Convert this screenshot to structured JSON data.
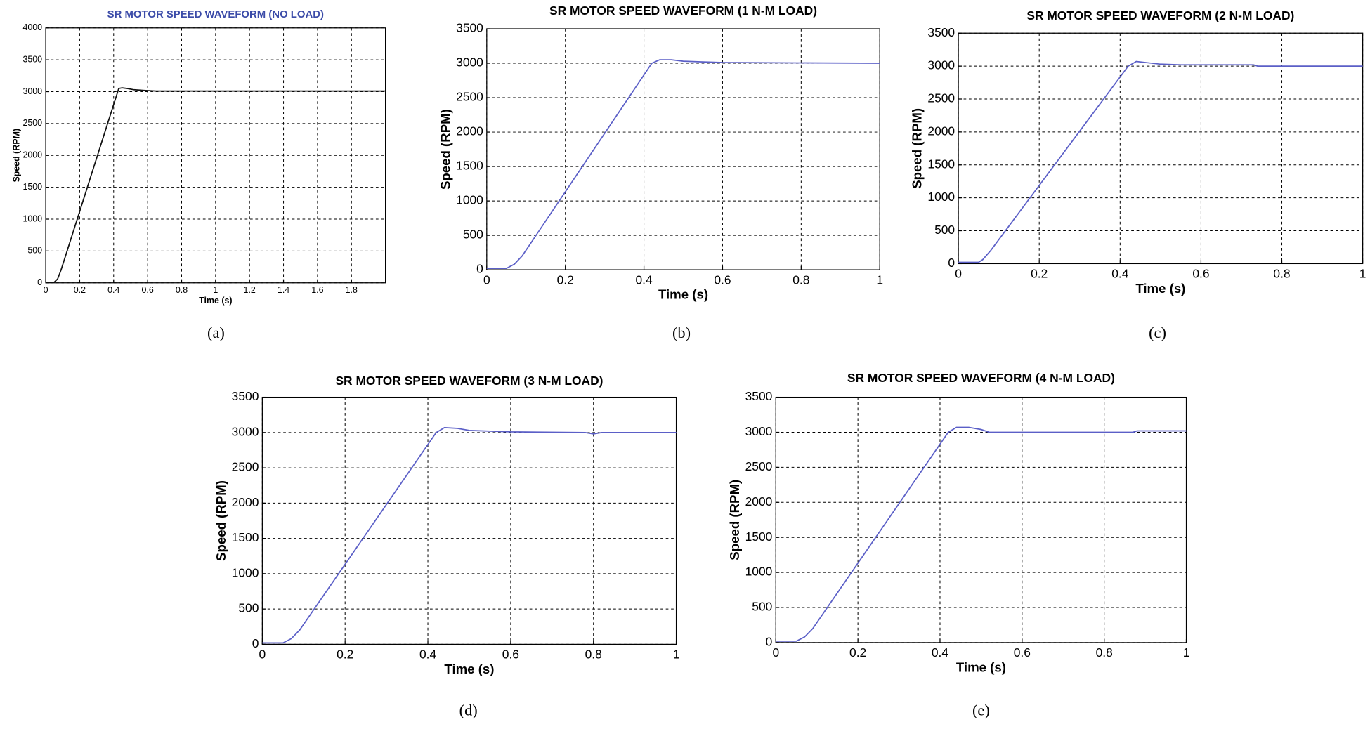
{
  "chart_data": [
    {
      "type": "line",
      "title": "SR MOTOR SPEED WAVEFORM (NO LOAD)",
      "caption": "(a)",
      "x_label": "Time (s)",
      "y_label": "Speed (RPM)",
      "x": [
        0,
        0.05,
        0.07,
        0.09,
        0.43,
        0.45,
        0.48,
        0.52,
        0.58,
        0.65,
        1.0,
        2.0
      ],
      "values": [
        10,
        10,
        60,
        200,
        3050,
        3060,
        3050,
        3030,
        3020,
        3010,
        3010,
        3010
      ],
      "color": "#111111",
      "title_color": "#3b4ba8",
      "xlim": [
        0,
        2
      ],
      "xticks": [
        0,
        0.2,
        0.4,
        0.6,
        0.8,
        1,
        1.2,
        1.4,
        1.6,
        1.8
      ],
      "ylim": [
        0,
        4000
      ],
      "yticks": [
        0,
        500,
        1000,
        1500,
        2000,
        2500,
        3000,
        3500,
        4000
      ],
      "grid": true
    },
    {
      "type": "line",
      "title": "SR MOTOR SPEED WAVEFORM (1 N-M LOAD)",
      "caption": "(b)",
      "x_label": "Time (s)",
      "y_label": "Speed (RPM)",
      "x": [
        0,
        0.05,
        0.07,
        0.09,
        0.42,
        0.44,
        0.47,
        0.5,
        0.55,
        0.6,
        1.0
      ],
      "values": [
        20,
        20,
        80,
        200,
        3000,
        3050,
        3050,
        3030,
        3020,
        3010,
        3000
      ],
      "color": "#5b5fc7",
      "title_color": "#000000",
      "xlim": [
        0,
        1
      ],
      "xticks": [
        0,
        0.2,
        0.4,
        0.6,
        0.8,
        1
      ],
      "ylim": [
        0,
        3500
      ],
      "yticks": [
        0,
        500,
        1000,
        1500,
        2000,
        2500,
        3000,
        3500
      ],
      "grid": true
    },
    {
      "type": "line",
      "title": "SR MOTOR SPEED WAVEFORM (2 N-M LOAD)",
      "caption": "(c)",
      "x_label": "Time (s)",
      "y_label": "Speed (RPM)",
      "x": [
        0,
        0.05,
        0.06,
        0.08,
        0.42,
        0.44,
        0.47,
        0.5,
        0.55,
        0.73,
        0.74,
        1.0
      ],
      "values": [
        20,
        20,
        60,
        200,
        3000,
        3070,
        3050,
        3030,
        3020,
        3020,
        3000,
        3000
      ],
      "color": "#5b5fc7",
      "title_color": "#000000",
      "xlim": [
        0,
        1
      ],
      "xticks": [
        0,
        0.2,
        0.4,
        0.6,
        0.8,
        1
      ],
      "ylim": [
        0,
        3500
      ],
      "yticks": [
        0,
        500,
        1000,
        1500,
        2000,
        2500,
        3000,
        3500
      ],
      "grid": true
    },
    {
      "type": "line",
      "title": "SR MOTOR SPEED WAVEFORM (3 N-M LOAD)",
      "caption": "(d)",
      "x_label": "Time (s)",
      "y_label": "Speed (RPM)",
      "x": [
        0,
        0.05,
        0.07,
        0.09,
        0.42,
        0.44,
        0.47,
        0.5,
        0.55,
        0.6,
        0.78,
        0.8,
        0.82,
        1.0
      ],
      "values": [
        20,
        20,
        80,
        200,
        3000,
        3070,
        3060,
        3030,
        3020,
        3010,
        3000,
        2980,
        3000,
        3000
      ],
      "color": "#5b5fc7",
      "title_color": "#000000",
      "xlim": [
        0,
        1
      ],
      "xticks": [
        0,
        0.2,
        0.4,
        0.6,
        0.8,
        1
      ],
      "ylim": [
        0,
        3500
      ],
      "yticks": [
        0,
        500,
        1000,
        1500,
        2000,
        2500,
        3000,
        3500
      ],
      "grid": true
    },
    {
      "type": "line",
      "title": "SR MOTOR SPEED WAVEFORM (4 N-M LOAD)",
      "caption": "(e)",
      "x_label": "Time (s)",
      "y_label": "Speed (RPM)",
      "x": [
        0,
        0.05,
        0.07,
        0.09,
        0.42,
        0.44,
        0.47,
        0.5,
        0.52,
        0.6,
        0.87,
        0.88,
        1.0
      ],
      "values": [
        20,
        20,
        80,
        200,
        3000,
        3070,
        3070,
        3040,
        3000,
        3000,
        3000,
        3020,
        3020
      ],
      "color": "#5b5fc7",
      "title_color": "#000000",
      "xlim": [
        0,
        1
      ],
      "xticks": [
        0,
        0.2,
        0.4,
        0.6,
        0.8,
        1
      ],
      "ylim": [
        0,
        3500
      ],
      "yticks": [
        0,
        500,
        1000,
        1500,
        2000,
        2500,
        3000,
        3500
      ],
      "grid": true
    }
  ]
}
